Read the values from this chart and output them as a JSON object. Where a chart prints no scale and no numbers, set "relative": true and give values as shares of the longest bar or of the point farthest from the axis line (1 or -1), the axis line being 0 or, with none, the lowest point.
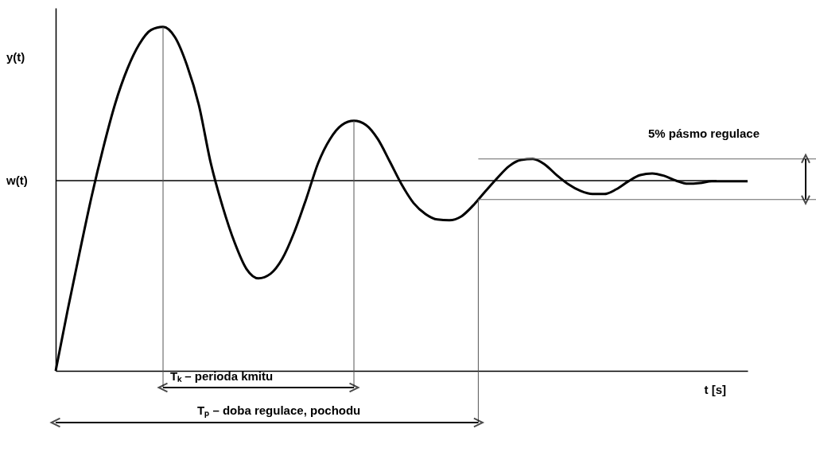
{
  "chart_data": {
    "type": "line",
    "relative": true,
    "xlabel": "t [s]",
    "ylabel": "y(t)",
    "categories": [
      null,
      null,
      null,
      null,
      null,
      null,
      null,
      null,
      null,
      null,
      null,
      null,
      null,
      null,
      null,
      null,
      null,
      null,
      null,
      null,
      null,
      null,
      null,
      null,
      null,
      null,
      null,
      null,
      null,
      null,
      null,
      null,
      null,
      null,
      null,
      null,
      null,
      null,
      null,
      null,
      null,
      null,
      null,
      null,
      null,
      null,
      null,
      null,
      null,
      null,
      null,
      null,
      null,
      null,
      null,
      null,
      null,
      null,
      null
    ],
    "series": [
      {
        "color": "#000000",
        "values": [
          0,
          0.176,
          0.343,
          0.505,
          0.65,
          0.778,
          0.877,
          0.949,
          0.991,
          1,
          0.97,
          0.889,
          0.773,
          0.604,
          0.477,
          0.373,
          0.296,
          0.269,
          0.282,
          0.326,
          0.403,
          0.5,
          0.604,
          0.674,
          0.715,
          0.727,
          0.715,
          0.674,
          0.609,
          0.542,
          0.488,
          0.456,
          0.44,
          0.438,
          0.449,
          0.481,
          0.521,
          0.56,
          0.595,
          0.613,
          0.616,
          0.6,
          0.569,
          0.542,
          0.523,
          0.514,
          0.514,
          0.528,
          0.551,
          0.569,
          0.574,
          0.567,
          0.553,
          0.544,
          0.546,
          0.551,
          0.551,
          0.551,
          0.551
        ]
      }
    ],
    "ref_lines": [
      {
        "axis": "y",
        "value": 0.553,
        "label": "w(t)",
        "color": "#000000"
      },
      {
        "axis": "y",
        "value": 0.616,
        "label": "5% pásmo regulace",
        "color": "#666666"
      },
      {
        "axis": "y",
        "value": 0.498,
        "label": null,
        "color": "#666666"
      }
    ],
    "annotations": [
      "Tₖ – perioda kmitu",
      "Tₚ – doba regulace, pochodu"
    ],
    "grid": false,
    "marker": "none",
    "line_style": "solid"
  }
}
